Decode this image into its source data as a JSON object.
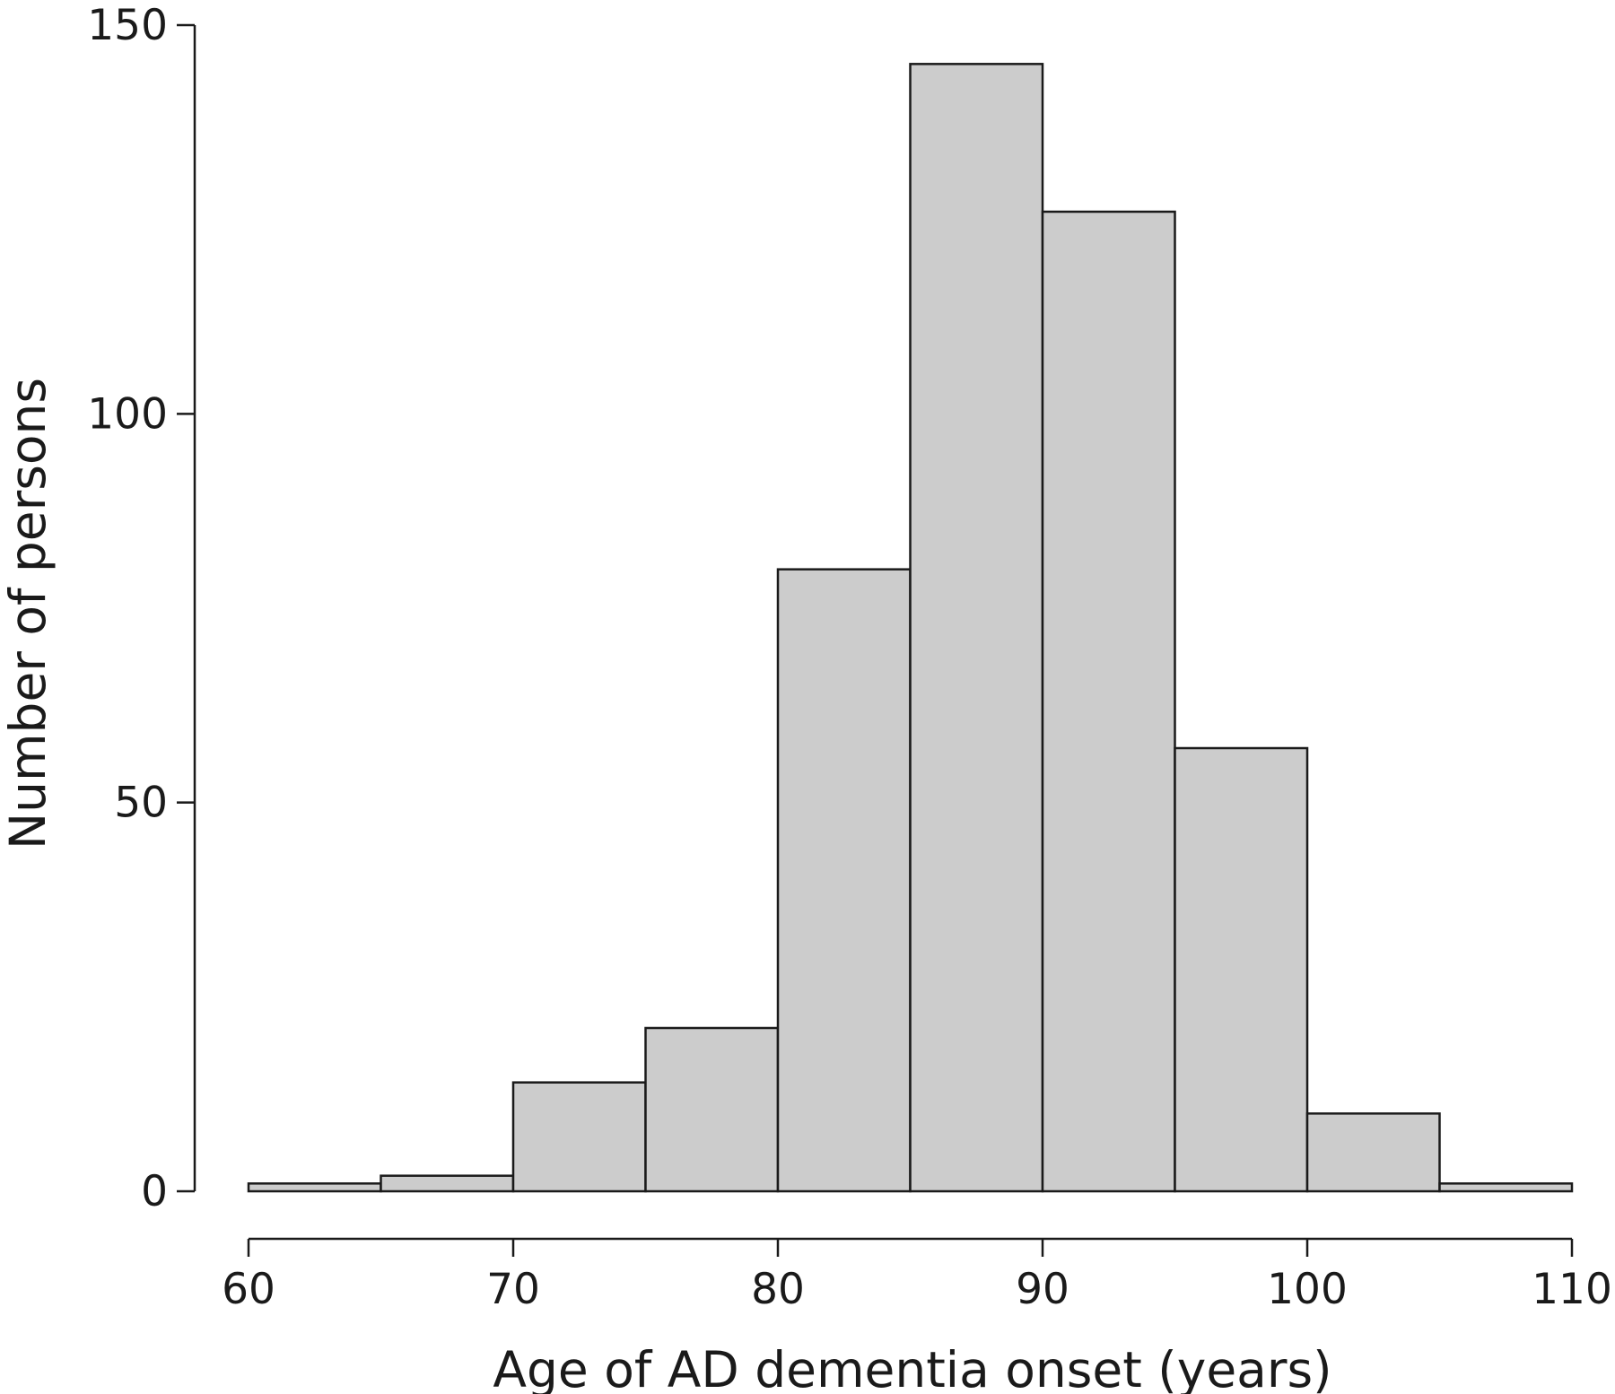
{
  "chart_data": {
    "type": "bar",
    "subtype": "histogram",
    "bin_edges": [
      60,
      65,
      70,
      75,
      80,
      85,
      90,
      95,
      100,
      105,
      110
    ],
    "values": [
      1,
      2,
      14,
      21,
      80,
      145,
      126,
      57,
      10,
      1
    ],
    "xlabel": "Age of AD dementia onset (years)",
    "ylabel": "Number of persons",
    "xlim": [
      60,
      110
    ],
    "ylim": [
      0,
      150
    ],
    "x_ticks": [
      "60",
      "70",
      "80",
      "90",
      "100",
      "110"
    ],
    "y_ticks": [
      "0",
      "50",
      "100",
      "150"
    ],
    "bar_color": "#cccccc",
    "edge_color": "#1a1a1a",
    "grid": false,
    "legend": "none"
  }
}
